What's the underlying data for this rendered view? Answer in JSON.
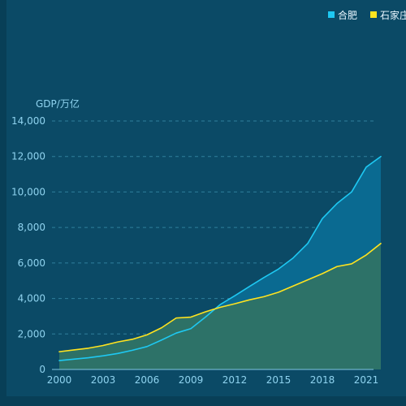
{
  "chart_data": {
    "type": "area",
    "title": "",
    "ylabel": "GDP/万亿",
    "x": [
      2000,
      2001,
      2002,
      2003,
      2004,
      2005,
      2006,
      2007,
      2008,
      2009,
      2010,
      2011,
      2012,
      2013,
      2014,
      2015,
      2016,
      2017,
      2018,
      2019,
      2020,
      2021,
      2022
    ],
    "xticks": [
      "2000",
      "2003",
      "2006",
      "2009",
      "2012",
      "2015",
      "2018",
      "2021"
    ],
    "xtick_values": [
      2000,
      2003,
      2006,
      2009,
      2012,
      2015,
      2018,
      2021
    ],
    "ylim": [
      0,
      14000
    ],
    "yticks": [
      0,
      2000,
      4000,
      6000,
      8000,
      10000,
      12000,
      14000
    ],
    "ytick_labels": [
      "0",
      "2,000",
      "4,000",
      "6,000",
      "8,000",
      "10,000",
      "12,000",
      "14,000"
    ],
    "grid": true,
    "legend_position": "top-right",
    "series": [
      {
        "name": "合肥",
        "color": "#1ec8f2",
        "fill": "#0a6a91",
        "values": [
          500,
          580,
          660,
          770,
          900,
          1080,
          1290,
          1660,
          2050,
          2300,
          2950,
          3650,
          4150,
          4670,
          5180,
          5660,
          6280,
          7100,
          8500,
          9350,
          10000,
          11400,
          12000
        ]
      },
      {
        "name": "石家庄",
        "color": "#ffe31f",
        "fill": "#2f7366",
        "values": [
          1000,
          1100,
          1200,
          1350,
          1550,
          1700,
          1950,
          2350,
          2900,
          2950,
          3250,
          3500,
          3700,
          3920,
          4100,
          4350,
          4700,
          5050,
          5400,
          5800,
          5950,
          6450,
          7100
        ]
      }
    ]
  }
}
